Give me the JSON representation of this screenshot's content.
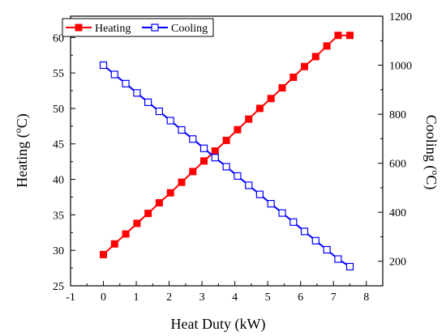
{
  "chart_data": {
    "type": "line",
    "xlabel": "Heat Duty (kW)",
    "ylabel_left": "Heating (",
    "ylabel_right": "Cooling (",
    "unit_super": "o",
    "unit_tail": "C)",
    "xlim": [
      -1,
      8.5
    ],
    "ylim_left": [
      25,
      63
    ],
    "ylim_right": [
      100,
      1200
    ],
    "x_ticks": [
      -1,
      0,
      1,
      2,
      3,
      4,
      5,
      6,
      7,
      8
    ],
    "y_left_ticks": [
      25,
      30,
      35,
      40,
      45,
      50,
      55,
      60
    ],
    "y_right_ticks": [
      200,
      400,
      600,
      800,
      1000,
      1200
    ],
    "grid": false,
    "legend_position": "top-left",
    "series": [
      {
        "name": "Heating",
        "axis": "left",
        "color": "#ff0000",
        "marker": "filled-square",
        "x": [
          0,
          0.34,
          0.68,
          1.02,
          1.36,
          1.7,
          2.04,
          2.38,
          2.72,
          3.06,
          3.4,
          3.74,
          4.08,
          4.42,
          4.76,
          5.1,
          5.44,
          5.78,
          6.12,
          6.46,
          6.8,
          7.14,
          7.5
        ],
        "values": [
          29.4,
          30.9,
          32.3,
          33.8,
          35.2,
          36.7,
          38.1,
          39.6,
          41.1,
          42.6,
          44.0,
          45.5,
          47.0,
          48.5,
          50.0,
          51.4,
          52.9,
          54.4,
          55.9,
          57.3,
          58.8,
          60.3,
          60.3
        ]
      },
      {
        "name": "Cooling",
        "axis": "right",
        "color": "#0000ff",
        "marker": "open-square",
        "x": [
          0,
          0.34,
          0.68,
          1.02,
          1.36,
          1.7,
          2.04,
          2.38,
          2.72,
          3.06,
          3.4,
          3.74,
          4.08,
          4.42,
          4.76,
          5.1,
          5.44,
          5.78,
          6.12,
          6.46,
          6.8,
          7.14,
          7.5
        ],
        "values": [
          1000,
          962,
          925,
          887,
          849,
          812,
          774,
          736,
          699,
          661,
          623,
          586,
          548,
          510,
          473,
          435,
          397,
          360,
          322,
          284,
          247,
          209,
          178
        ]
      }
    ]
  }
}
